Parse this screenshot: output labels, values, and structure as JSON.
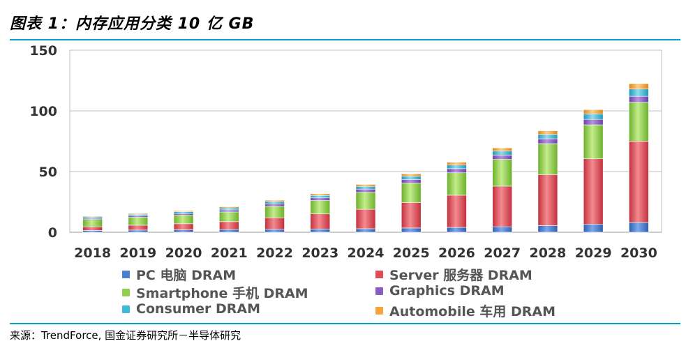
{
  "title": "图表 1：内存应用分类 10 亿 GB",
  "source": "来源：TrendForce, 国金证券研究所－半导体研究",
  "chart_data": {
    "type": "bar",
    "stacked": true,
    "title": "图表 1：内存应用分类 10 亿 GB",
    "xlabel": "",
    "ylabel": "",
    "ylim": [
      0,
      150
    ],
    "yticks": [
      0,
      50,
      100,
      150
    ],
    "grid": true,
    "legend_position": "bottom",
    "categories": [
      "2018",
      "2019",
      "2020",
      "2021",
      "2022",
      "2023",
      "2024",
      "2025",
      "2026",
      "2027",
      "2028",
      "2029",
      "2030"
    ],
    "series": [
      {
        "name": "PC 电脑 DRAM",
        "color": "#4a7fd1",
        "values": [
          1.5,
          1.8,
          2.0,
          2.2,
          2.4,
          2.6,
          2.9,
          3.5,
          4.0,
          4.5,
          5.5,
          6.5,
          8.0
        ]
      },
      {
        "name": "Server 服务器 DRAM",
        "color": "#e04b55",
        "values": [
          3.0,
          4.0,
          5.0,
          6.5,
          9.5,
          12.5,
          16.0,
          21.0,
          26.5,
          33.5,
          42.0,
          54.0,
          67.0
        ]
      },
      {
        "name": "Smartphone 手机 DRAM",
        "color": "#8fcf4a",
        "values": [
          6.0,
          6.5,
          7.0,
          8.0,
          9.5,
          11.0,
          14.0,
          16.0,
          18.5,
          22.0,
          25.5,
          28.0,
          32.0
        ]
      },
      {
        "name": "Graphics DRAM",
        "color": "#8a5cc4",
        "values": [
          1.0,
          1.2,
          1.4,
          1.7,
          2.0,
          2.2,
          2.6,
          3.0,
          3.4,
          3.6,
          4.0,
          4.5,
          5.0
        ]
      },
      {
        "name": "Consumer DRAM",
        "color": "#3fb9d6",
        "values": [
          1.2,
          1.3,
          1.5,
          1.6,
          1.8,
          2.0,
          2.3,
          2.7,
          3.0,
          3.3,
          3.6,
          4.5,
          6.0
        ]
      },
      {
        "name": "Automobile 车用 DRAM",
        "color": "#f5a33a",
        "values": [
          0.6,
          0.7,
          0.8,
          1.0,
          1.2,
          1.4,
          1.6,
          1.9,
          2.3,
          2.6,
          3.0,
          3.5,
          4.5
        ]
      }
    ]
  }
}
